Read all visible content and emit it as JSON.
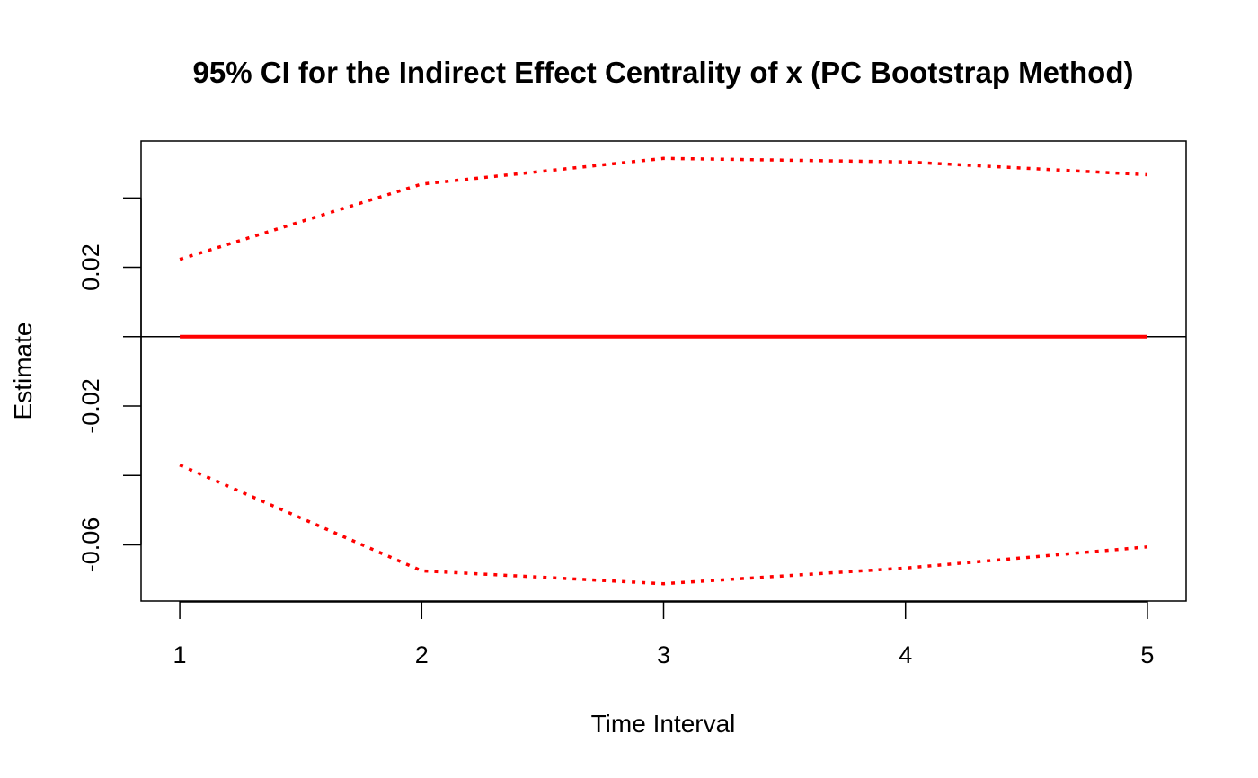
{
  "chart_data": {
    "type": "line",
    "title": "95% CI for the Indirect Effect Centrality of x (PC Bootstrap Method)",
    "xlabel": "Time Interval",
    "ylabel": "Estimate",
    "x": [
      1,
      2,
      3,
      4,
      5
    ],
    "x_ticks": [
      "1",
      "2",
      "3",
      "4",
      "5"
    ],
    "y_ticks": [
      {
        "value": 0.04,
        "label": ""
      },
      {
        "value": 0.02,
        "label": "0.02"
      },
      {
        "value": 0.0,
        "label": ""
      },
      {
        "value": -0.02,
        "label": "-0.02"
      },
      {
        "value": -0.04,
        "label": ""
      },
      {
        "value": -0.06,
        "label": "-0.06"
      }
    ],
    "xlim": [
      0.84,
      5.16
    ],
    "ylim": [
      -0.0762,
      0.0564
    ],
    "reference_line": 0,
    "series": [
      {
        "role": "estimate",
        "style": "solid",
        "color": "#ff0000",
        "values": [
          0,
          0,
          0,
          0,
          0
        ]
      },
      {
        "role": "upper",
        "style": "dotted",
        "color": "#ff0000",
        "values": [
          0.0223,
          0.044,
          0.0514,
          0.0504,
          0.0467
        ]
      },
      {
        "role": "lower",
        "style": "dotted",
        "color": "#ff0000",
        "values": [
          -0.037,
          -0.0675,
          -0.0712,
          -0.0667,
          -0.0606
        ]
      }
    ],
    "grid": false,
    "legend": "none"
  }
}
